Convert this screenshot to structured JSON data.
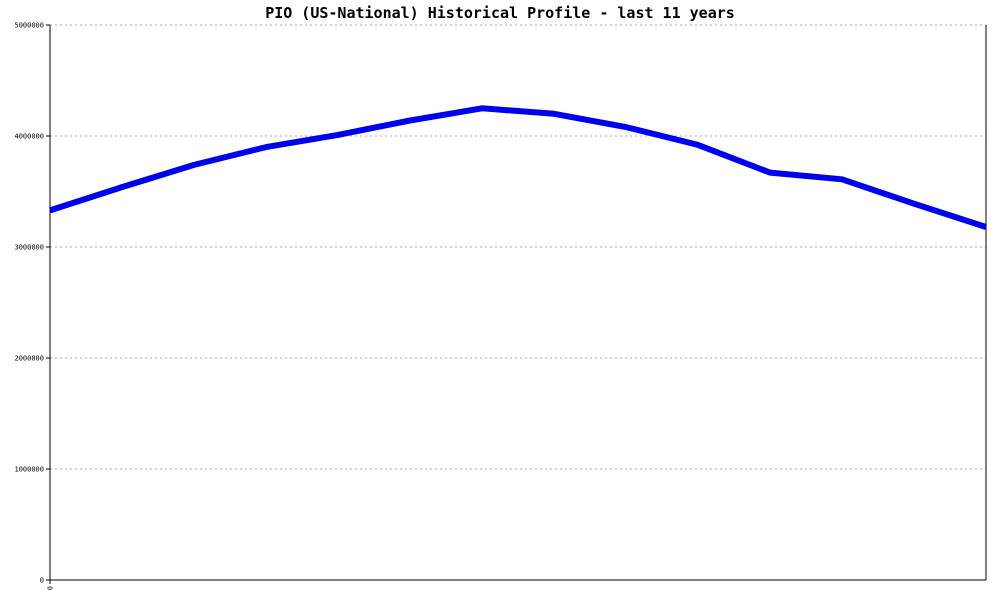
{
  "chart_data": {
    "type": "line",
    "title": "PIO (US-National) Historical Profile - last 11 years",
    "xlabel": "",
    "ylabel": "",
    "x_tick_labels": [
      "0"
    ],
    "ylim": [
      0,
      5000000
    ],
    "y_ticks": [
      0,
      1000000,
      2000000,
      3000000,
      4000000,
      5000000
    ],
    "y_tick_labels": [
      "0",
      "1000000",
      "2000000",
      "3000000",
      "4000000",
      "5000000"
    ],
    "grid": true,
    "series": [
      {
        "color": "#0000ee",
        "values": [
          3330000,
          3540000,
          3740000,
          3900000,
          4010000,
          4140000,
          4250000,
          4200000,
          4080000,
          3920000,
          3670000,
          3610000,
          3390000,
          3180000
        ]
      }
    ]
  }
}
